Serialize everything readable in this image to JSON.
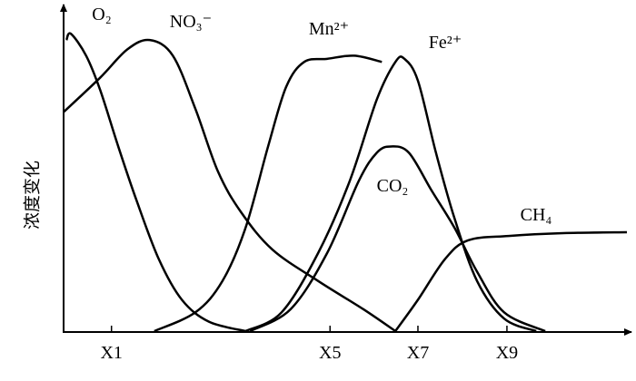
{
  "chart_data": {
    "type": "line",
    "y_label": "浓度变化",
    "xlim": [
      0,
      100
    ],
    "ylim": [
      0,
      100
    ],
    "xticks": [
      {
        "value": 8.5,
        "label": "X1"
      },
      {
        "value": 47.3,
        "label": "X5"
      },
      {
        "value": 62.9,
        "label": "X7"
      },
      {
        "value": 78.7,
        "label": "X9"
      }
    ],
    "series": [
      {
        "name": "O₂",
        "color": "#000000",
        "x": [
          0.5,
          1.3,
          4,
          6.5,
          9.7,
          12.9,
          16.9,
          21,
          25.8,
          32.3
        ],
        "values": [
          93,
          95,
          88,
          77,
          59,
          42,
          23,
          10,
          3,
          0
        ]
      },
      {
        "name": "NO₃⁻",
        "color": "#000000",
        "x": [
          0,
          6.5,
          11.3,
          15.3,
          19.4,
          23.4,
          27.4,
          31.5,
          37.1,
          45.2,
          53.2,
          58.9
        ],
        "values": [
          70,
          81,
          90,
          93,
          88,
          71,
          51,
          38,
          26,
          16,
          7,
          0
        ]
      },
      {
        "name": "Mn²⁺",
        "color": "#000000",
        "x": [
          16.1,
          23.4,
          28.2,
          32.3,
          36.3,
          39.5,
          42.7,
          46.8,
          51.6,
          56.5
        ],
        "values": [
          0,
          6,
          16,
          33,
          59,
          78,
          86,
          87,
          88,
          86
        ]
      },
      {
        "name": "Fe²⁺",
        "color": "#000000",
        "x": [
          32.3,
          38.7,
          45.2,
          50.8,
          55.6,
          58.9,
          60.5,
          62.9,
          66.1,
          69.4,
          73.4,
          78.2,
          83.9
        ],
        "values": [
          0,
          6,
          25,
          48,
          74,
          86,
          87,
          80,
          57,
          36,
          16,
          4,
          0
        ]
      },
      {
        "name": "CO₂",
        "color": "#000000",
        "x": [
          33.1,
          40.3,
          46.8,
          52.4,
          55.6,
          58.1,
          61.3,
          65.3,
          69.4,
          73.4,
          78.2,
          85.5
        ],
        "values": [
          0,
          7,
          25,
          48,
          57,
          59,
          57,
          45,
          33,
          19,
          6,
          0
        ]
      },
      {
        "name": "CH₄",
        "color": "#000000",
        "x": [
          58.9,
          62.9,
          67.7,
          71.8,
          79,
          88.7,
          100
        ],
        "values": [
          0,
          10,
          23,
          29,
          30.4,
          31.3,
          31.6
        ]
      }
    ]
  }
}
